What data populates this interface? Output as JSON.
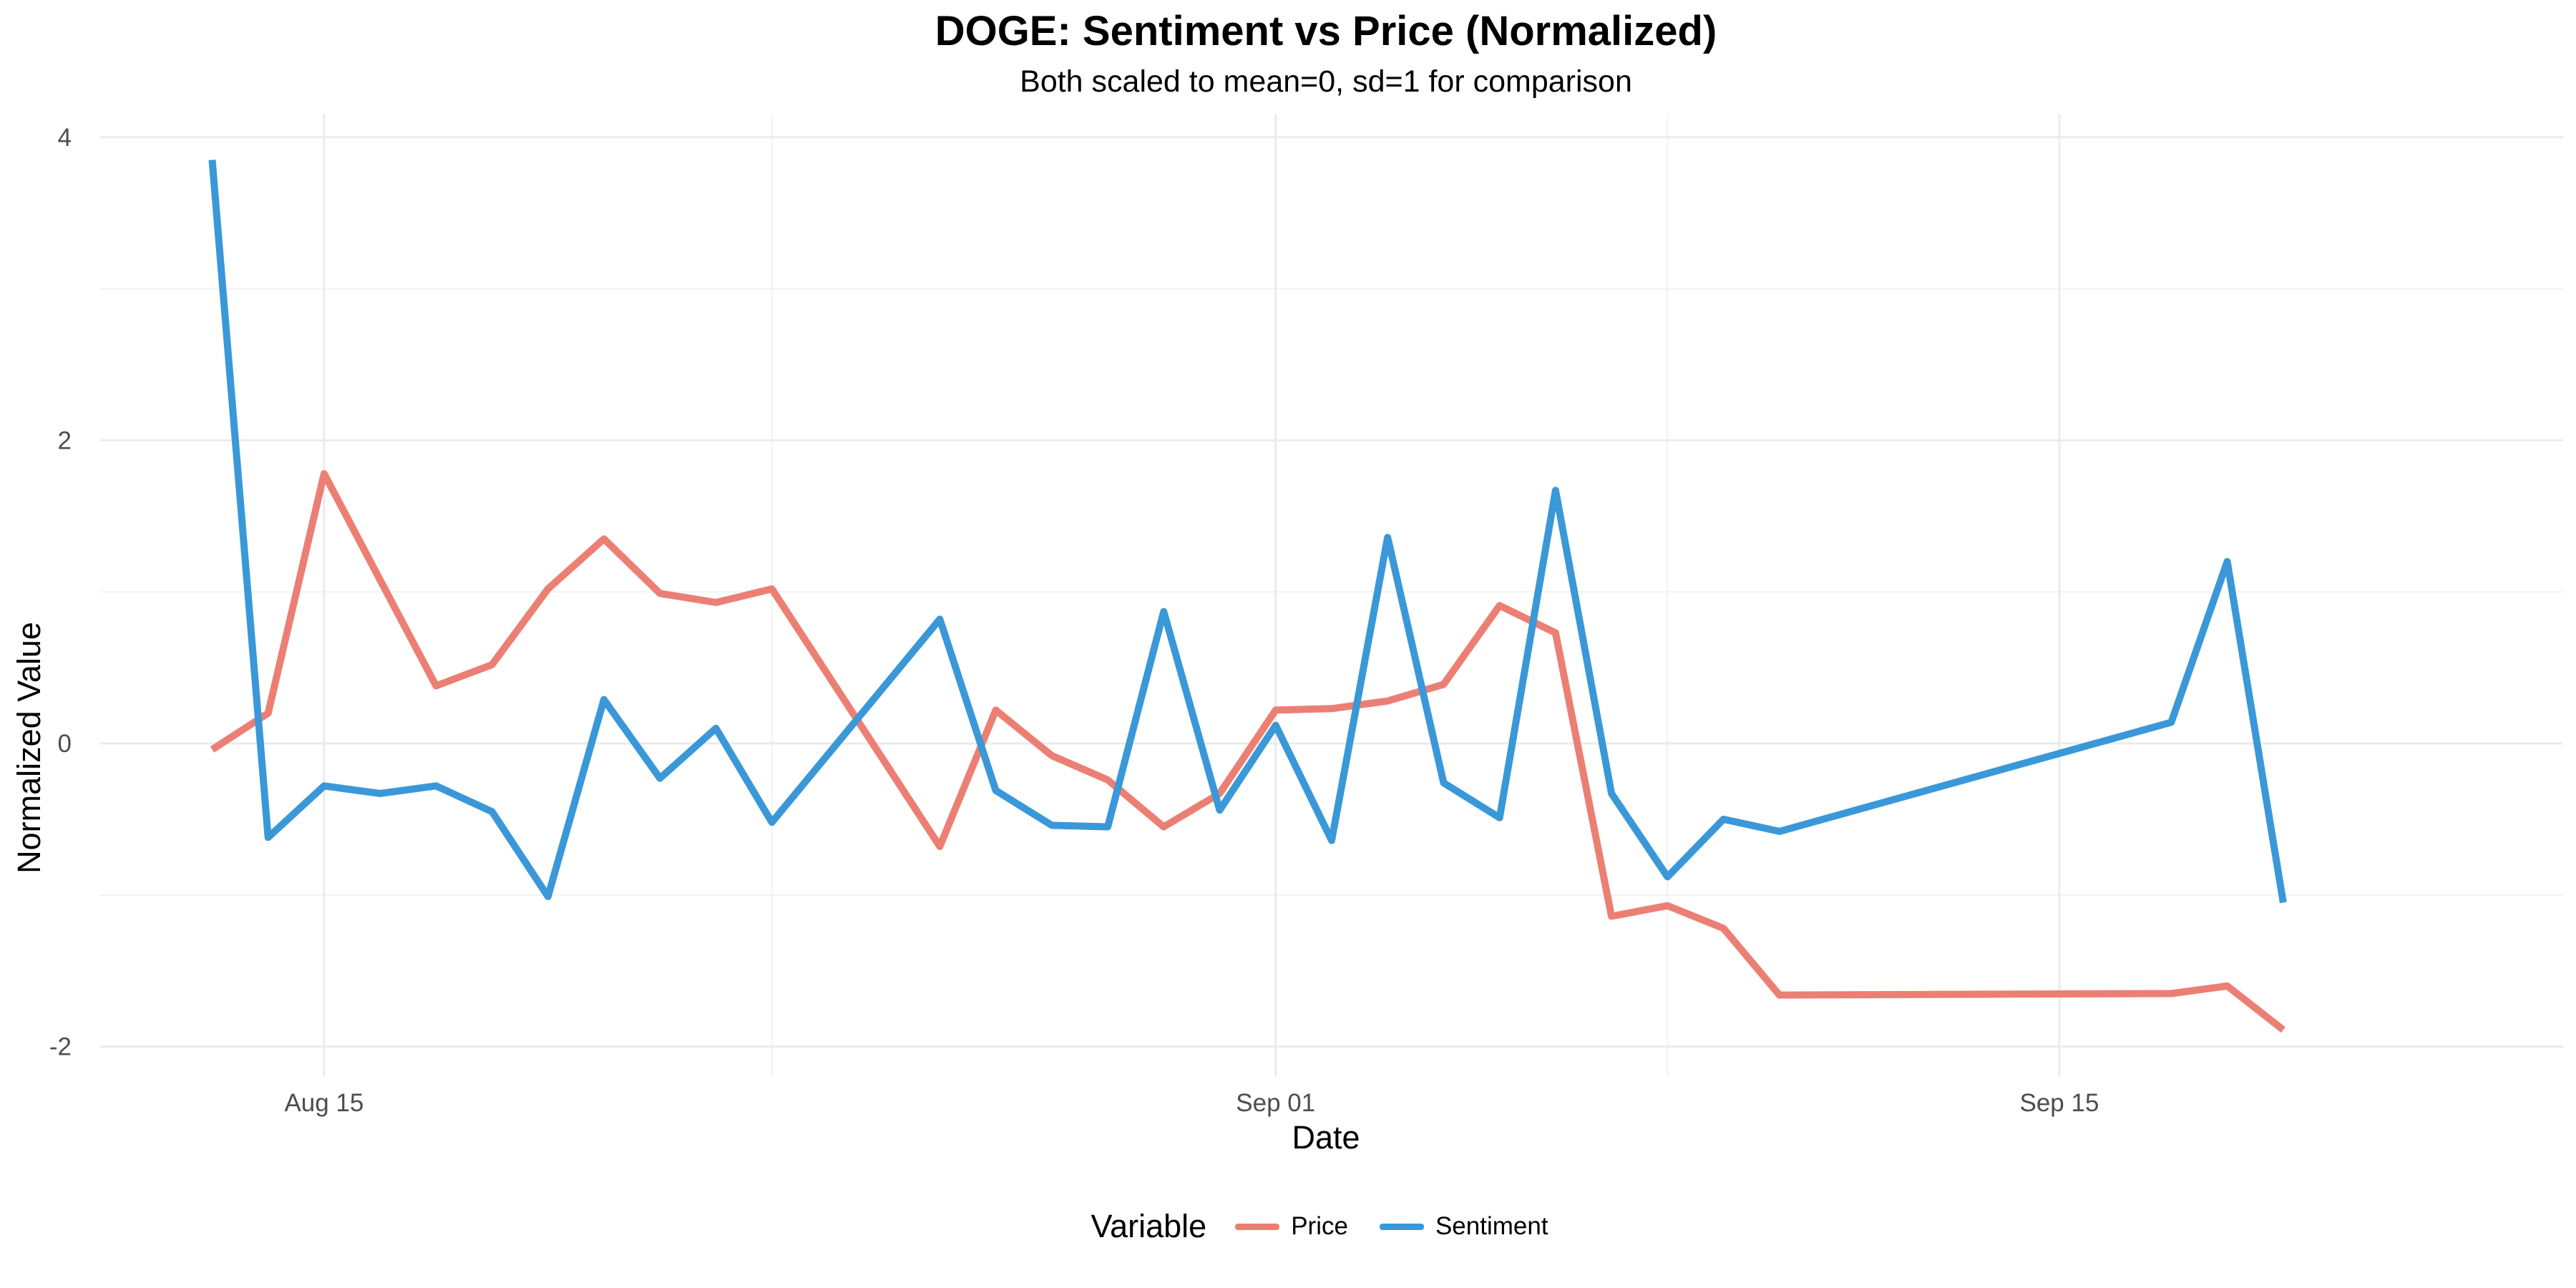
{
  "chart_data": {
    "type": "line",
    "title": "DOGE: Sentiment vs Price (Normalized)",
    "subtitle": "Both scaled to mean=0, sd=1 for comparison",
    "xlabel": "Date",
    "ylabel": "Normalized Value",
    "x_type": "date",
    "x_ticks": [
      {
        "date": "2025-08-15",
        "label": "Aug 15"
      },
      {
        "date": "2025-09-01",
        "label": "Sep 01"
      },
      {
        "date": "2025-09-15",
        "label": "Sep 15"
      }
    ],
    "x_minor_grid": [
      "2025-08-23",
      "2025-09-08"
    ],
    "xlim": [
      "2025-08-11",
      "2025-09-24"
    ],
    "ylim": [
      -2.2,
      4.15
    ],
    "y_ticks": [
      -2,
      0,
      2,
      4
    ],
    "grid": true,
    "legend": {
      "title": "Variable",
      "position": "bottom"
    },
    "series": [
      {
        "name": "Price",
        "color": "#ec7f74",
        "points": [
          [
            "2025-08-13",
            -0.04
          ],
          [
            "2025-08-14",
            0.2
          ],
          [
            "2025-08-15",
            1.78
          ],
          [
            "2025-08-16",
            1.08
          ],
          [
            "2025-08-17",
            0.38
          ],
          [
            "2025-08-18",
            0.52
          ],
          [
            "2025-08-19",
            1.02
          ],
          [
            "2025-08-20",
            1.35
          ],
          [
            "2025-08-21",
            0.99
          ],
          [
            "2025-08-22",
            0.93
          ],
          [
            "2025-08-23",
            1.02
          ],
          [
            "2025-08-26",
            -0.68
          ],
          [
            "2025-08-27",
            0.22
          ],
          [
            "2025-08-28",
            -0.08
          ],
          [
            "2025-08-29",
            -0.24
          ],
          [
            "2025-08-30",
            -0.55
          ],
          [
            "2025-08-31",
            -0.33
          ],
          [
            "2025-09-01",
            0.22
          ],
          [
            "2025-09-02",
            0.23
          ],
          [
            "2025-09-03",
            0.28
          ],
          [
            "2025-09-04",
            0.39
          ],
          [
            "2025-09-05",
            0.91
          ],
          [
            "2025-09-06",
            0.73
          ],
          [
            "2025-09-07",
            -1.14
          ],
          [
            "2025-09-08",
            -1.07
          ],
          [
            "2025-09-09",
            -1.22
          ],
          [
            "2025-09-10",
            -1.66
          ],
          [
            "2025-09-17",
            -1.65
          ],
          [
            "2025-09-18",
            -1.6
          ],
          [
            "2025-09-19",
            -1.89
          ]
        ]
      },
      {
        "name": "Sentiment",
        "color": "#3a98d8",
        "points": [
          [
            "2025-08-13",
            3.85
          ],
          [
            "2025-08-14",
            -0.62
          ],
          [
            "2025-08-15",
            -0.28
          ],
          [
            "2025-08-16",
            -0.33
          ],
          [
            "2025-08-17",
            -0.28
          ],
          [
            "2025-08-18",
            -0.45
          ],
          [
            "2025-08-19",
            -1.01
          ],
          [
            "2025-08-20",
            0.29
          ],
          [
            "2025-08-21",
            -0.23
          ],
          [
            "2025-08-22",
            0.1
          ],
          [
            "2025-08-23",
            -0.52
          ],
          [
            "2025-08-26",
            0.82
          ],
          [
            "2025-08-27",
            -0.31
          ],
          [
            "2025-08-28",
            -0.54
          ],
          [
            "2025-08-29",
            -0.55
          ],
          [
            "2025-08-30",
            0.87
          ],
          [
            "2025-08-31",
            -0.44
          ],
          [
            "2025-09-01",
            0.12
          ],
          [
            "2025-09-02",
            -0.64
          ],
          [
            "2025-09-03",
            1.36
          ],
          [
            "2025-09-04",
            -0.26
          ],
          [
            "2025-09-05",
            -0.49
          ],
          [
            "2025-09-06",
            1.67
          ],
          [
            "2025-09-07",
            -0.33
          ],
          [
            "2025-09-08",
            -0.88
          ],
          [
            "2025-09-09",
            -0.5
          ],
          [
            "2025-09-10",
            -0.58
          ],
          [
            "2025-09-17",
            0.14
          ],
          [
            "2025-09-18",
            1.2
          ],
          [
            "2025-09-19",
            -1.05
          ]
        ]
      }
    ]
  }
}
